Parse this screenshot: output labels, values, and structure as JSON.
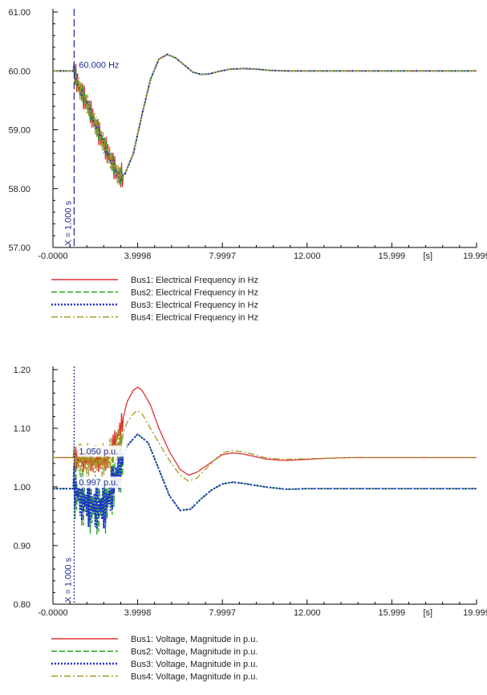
{
  "colors": {
    "bus1": "#e03030",
    "bus2": "#1e9e1e",
    "bus3": "#1f2fcf",
    "bus4": "#a09a20",
    "cursor": "#1a2d8f",
    "axis": "#000000"
  },
  "chart_data": [
    {
      "type": "line",
      "title": "",
      "xlabel": "[s]",
      "ylabel": "",
      "xlim": [
        0,
        20
      ],
      "ylim": [
        57,
        61
      ],
      "x_ticks": [
        0,
        3.9998,
        7.9997,
        12.0,
        15.999,
        19.999
      ],
      "x_tick_labels": [
        "-0.0000",
        "3.9998",
        "7.9997",
        "12.000",
        "15.999",
        "19.999"
      ],
      "y_ticks": [
        57,
        58,
        59,
        60,
        61
      ],
      "y_tick_labels": [
        "57.00",
        "58.00",
        "59.00",
        "60.00",
        "61.00"
      ],
      "cursor": {
        "x": 1.0,
        "label": "X = 1.000 s"
      },
      "annotations": [
        {
          "x": 1.0,
          "y": 60.0,
          "label": "60.000 Hz"
        }
      ],
      "series": [
        {
          "name": "Bus1: Electrical Frequency in Hz",
          "color_key": "bus1",
          "style": "solid",
          "osc_amp": 0.22,
          "x": [
            0,
            1.0,
            1.2,
            1.6,
            2.0,
            2.4,
            2.8,
            3.1,
            3.4,
            3.8,
            4.2,
            4.6,
            5.0,
            5.4,
            5.8,
            6.2,
            6.6,
            7.0,
            7.4,
            7.8,
            8.4,
            9.0,
            9.6,
            10.2,
            11.0,
            12.0,
            14.0,
            16.0,
            18.0,
            20.0
          ],
          "y": [
            60.0,
            60.0,
            59.75,
            59.45,
            59.1,
            58.75,
            58.45,
            58.2,
            58.25,
            58.6,
            59.25,
            59.85,
            60.2,
            60.28,
            60.22,
            60.1,
            59.98,
            59.94,
            59.95,
            59.99,
            60.03,
            60.04,
            60.03,
            60.01,
            60.0,
            60.0,
            60.0,
            60.0,
            60.0,
            60.0
          ]
        },
        {
          "name": "Bus2: Electrical Frequency in Hz",
          "color_key": "bus2",
          "style": "dash",
          "osc_amp": 0.16,
          "x": [
            0,
            1.0,
            1.2,
            1.6,
            2.0,
            2.4,
            2.8,
            3.1,
            3.4,
            3.8,
            4.2,
            4.6,
            5.0,
            5.4,
            5.8,
            6.2,
            6.6,
            7.0,
            7.4,
            7.8,
            8.4,
            9.0,
            9.6,
            10.2,
            11.0,
            12.0,
            14.0,
            16.0,
            18.0,
            20.0
          ],
          "y": [
            60.0,
            60.0,
            59.75,
            59.45,
            59.1,
            58.75,
            58.45,
            58.2,
            58.25,
            58.6,
            59.25,
            59.85,
            60.2,
            60.28,
            60.22,
            60.1,
            59.98,
            59.94,
            59.95,
            59.99,
            60.03,
            60.04,
            60.03,
            60.01,
            60.0,
            60.0,
            60.0,
            60.0,
            60.0,
            60.0
          ]
        },
        {
          "name": "Bus3: Electrical Frequency in Hz",
          "color_key": "bus3",
          "style": "dot",
          "osc_amp": 0.1,
          "x": [
            0,
            1.0,
            1.2,
            1.6,
            2.0,
            2.4,
            2.8,
            3.1,
            3.4,
            3.8,
            4.2,
            4.6,
            5.0,
            5.4,
            5.8,
            6.2,
            6.6,
            7.0,
            7.4,
            7.8,
            8.4,
            9.0,
            9.6,
            10.2,
            11.0,
            12.0,
            14.0,
            16.0,
            18.0,
            20.0
          ],
          "y": [
            60.0,
            60.0,
            59.75,
            59.45,
            59.1,
            58.75,
            58.45,
            58.2,
            58.25,
            58.6,
            59.25,
            59.85,
            60.2,
            60.28,
            60.22,
            60.1,
            59.98,
            59.94,
            59.95,
            59.99,
            60.03,
            60.04,
            60.03,
            60.01,
            60.0,
            60.0,
            60.0,
            60.0,
            60.0,
            60.0
          ]
        },
        {
          "name": "Bus4: Electrical Frequency in Hz",
          "color_key": "bus4",
          "style": "dashdot",
          "osc_amp": 0.18,
          "x": [
            0,
            1.0,
            1.2,
            1.6,
            2.0,
            2.4,
            2.8,
            3.1,
            3.4,
            3.8,
            4.2,
            4.6,
            5.0,
            5.4,
            5.8,
            6.2,
            6.6,
            7.0,
            7.4,
            7.8,
            8.4,
            9.0,
            9.6,
            10.2,
            11.0,
            12.0,
            14.0,
            16.0,
            18.0,
            20.0
          ],
          "y": [
            60.0,
            60.0,
            59.75,
            59.45,
            59.1,
            58.75,
            58.45,
            58.2,
            58.25,
            58.6,
            59.25,
            59.85,
            60.2,
            60.28,
            60.22,
            60.1,
            59.98,
            59.94,
            59.95,
            59.99,
            60.03,
            60.04,
            60.03,
            60.01,
            60.0,
            60.0,
            60.0,
            60.0,
            60.0,
            60.0
          ]
        }
      ]
    },
    {
      "type": "line",
      "title": "",
      "xlabel": "[s]",
      "ylabel": "",
      "xlim": [
        0,
        20
      ],
      "ylim": [
        0.8,
        1.2
      ],
      "x_ticks": [
        0,
        3.9998,
        7.9997,
        12.0,
        15.999,
        19.999
      ],
      "x_tick_labels": [
        "-0.0000",
        "3.9998",
        "7.9997",
        "12.000",
        "15.999",
        "19.999"
      ],
      "y_ticks": [
        0.8,
        0.9,
        1.0,
        1.1,
        1.2
      ],
      "y_tick_labels": [
        "0.80",
        "0.90",
        "1.00",
        "1.10",
        "1.20"
      ],
      "cursor": {
        "x": 1.0,
        "label": "X = 1.000 s"
      },
      "annotations": [
        {
          "x": 1.0,
          "y": 1.05,
          "label": "1.050 p.u."
        },
        {
          "x": 1.0,
          "y": 0.997,
          "label": "0.997 p.u."
        }
      ],
      "series": [
        {
          "name": "Bus1: Voltage, Magnitude in p.u.",
          "color_key": "bus1",
          "style": "solid",
          "osc_amp": 0.02,
          "x": [
            0,
            1.0,
            1.5,
            2.5,
            3.2,
            3.5,
            3.8,
            4.0,
            4.2,
            4.6,
            5.0,
            5.5,
            6.0,
            6.4,
            6.8,
            7.2,
            7.6,
            8.0,
            8.5,
            9.0,
            9.5,
            10.0,
            10.5,
            11.0,
            12.0,
            13.0,
            14.0,
            16.0,
            18.0,
            20.0
          ],
          "y": [
            1.05,
            1.05,
            1.045,
            1.045,
            1.1,
            1.145,
            1.165,
            1.17,
            1.165,
            1.14,
            1.1,
            1.06,
            1.03,
            1.02,
            1.025,
            1.035,
            1.045,
            1.055,
            1.058,
            1.056,
            1.052,
            1.048,
            1.046,
            1.045,
            1.047,
            1.049,
            1.05,
            1.05,
            1.05,
            1.05
          ]
        },
        {
          "name": "Bus2: Voltage, Magnitude in p.u.",
          "color_key": "bus2",
          "style": "dash",
          "osc_amp": 0.05,
          "x": [
            0,
            1.0,
            1.5,
            2.0,
            2.5,
            3.0,
            3.5,
            4.0,
            4.5,
            5.0,
            5.5,
            6.0,
            6.5,
            7.0,
            7.5,
            8.0,
            8.5,
            9.0,
            10.0,
            11.0,
            12.0,
            14.0,
            16.0,
            18.0,
            20.0
          ],
          "y": [
            0.997,
            0.997,
            0.975,
            0.965,
            0.97,
            1.02,
            1.07,
            1.09,
            1.075,
            1.03,
            0.985,
            0.96,
            0.962,
            0.98,
            0.995,
            1.005,
            1.008,
            1.006,
            1.0,
            0.996,
            0.997,
            0.997,
            0.997,
            0.997,
            0.997
          ]
        },
        {
          "name": "Bus3: Voltage, Magnitude in p.u.",
          "color_key": "bus3",
          "style": "dot",
          "osc_amp": 0.04,
          "x": [
            0,
            1.0,
            1.5,
            2.0,
            2.5,
            3.0,
            3.5,
            4.0,
            4.5,
            5.0,
            5.5,
            6.0,
            6.5,
            7.0,
            7.5,
            8.0,
            8.5,
            9.0,
            10.0,
            11.0,
            12.0,
            14.0,
            16.0,
            18.0,
            20.0
          ],
          "y": [
            0.997,
            0.997,
            0.975,
            0.965,
            0.97,
            1.02,
            1.07,
            1.09,
            1.075,
            1.03,
            0.985,
            0.96,
            0.962,
            0.98,
            0.995,
            1.005,
            1.008,
            1.006,
            1.0,
            0.996,
            0.997,
            0.997,
            0.997,
            0.997,
            0.997
          ]
        },
        {
          "name": "Bus4: Voltage, Magnitude in p.u.",
          "color_key": "bus4",
          "style": "dashdot",
          "osc_amp": 0.03,
          "x": [
            0,
            1.0,
            1.5,
            2.5,
            3.2,
            3.5,
            3.8,
            4.0,
            4.2,
            4.6,
            5.0,
            5.5,
            6.0,
            6.4,
            6.8,
            7.2,
            7.6,
            8.0,
            8.5,
            9.0,
            9.5,
            10.0,
            10.5,
            11.0,
            12.0,
            13.0,
            14.0,
            16.0,
            18.0,
            20.0
          ],
          "y": [
            1.05,
            1.05,
            1.045,
            1.045,
            1.08,
            1.11,
            1.125,
            1.13,
            1.125,
            1.1,
            1.075,
            1.045,
            1.02,
            1.01,
            1.015,
            1.03,
            1.045,
            1.058,
            1.062,
            1.06,
            1.055,
            1.05,
            1.048,
            1.047,
            1.048,
            1.049,
            1.05,
            1.05,
            1.05,
            1.05
          ]
        }
      ]
    }
  ]
}
